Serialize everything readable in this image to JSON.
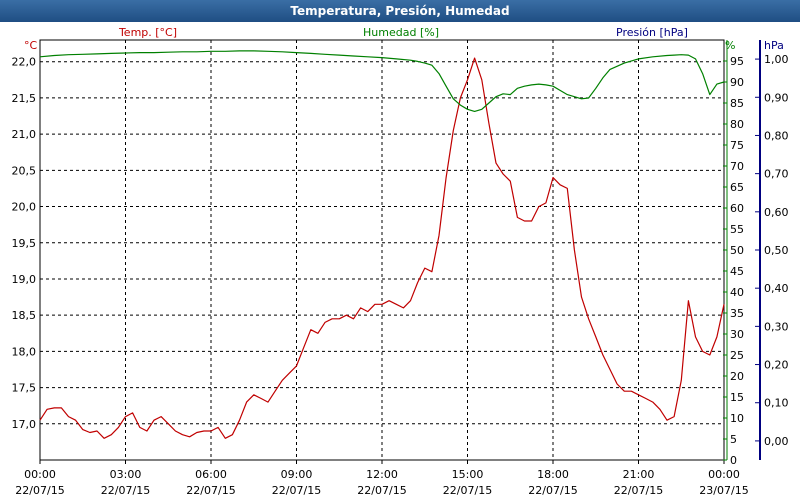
{
  "window": {
    "title": "Temperatura, Presión, Humedad"
  },
  "chart_data": {
    "type": "line",
    "title": "Temperatura, Presión, Humedad",
    "grid": true,
    "x_ticks": [
      {
        "time": "00:00",
        "date": "22/07/15"
      },
      {
        "time": "03:00",
        "date": "22/07/15"
      },
      {
        "time": "06:00",
        "date": "22/07/15"
      },
      {
        "time": "09:00",
        "date": "22/07/15"
      },
      {
        "time": "12:00",
        "date": "22/07/15"
      },
      {
        "time": "15:00",
        "date": "22/07/15"
      },
      {
        "time": "18:00",
        "date": "22/07/15"
      },
      {
        "time": "21:00",
        "date": "22/07/15"
      },
      {
        "time": "00:00",
        "date": "23/07/15"
      }
    ],
    "xlim": [
      0,
      24
    ],
    "axes": {
      "temp": {
        "label": "Temp. [°C]",
        "unit": "°C",
        "color": "#c00000",
        "ylim": [
          16.5,
          22.3
        ],
        "ticks": [
          "17,0",
          "17,5",
          "18,0",
          "18,5",
          "19,0",
          "19,5",
          "20,0",
          "20,5",
          "21,0",
          "21,5",
          "22,0"
        ],
        "tick_values": [
          17.0,
          17.5,
          18.0,
          18.5,
          19.0,
          19.5,
          20.0,
          20.5,
          21.0,
          21.5,
          22.0
        ]
      },
      "humidity": {
        "label": "Humedad [%]",
        "unit": "%",
        "color": "#008000",
        "ylim": [
          0,
          100
        ],
        "ticks": [
          "0",
          "5",
          "10",
          "15",
          "20",
          "25",
          "30",
          "35",
          "40",
          "45",
          "50",
          "55",
          "60",
          "65",
          "70",
          "75",
          "80",
          "85",
          "90",
          "95"
        ],
        "tick_values": [
          0,
          5,
          10,
          15,
          20,
          25,
          30,
          35,
          40,
          45,
          50,
          55,
          60,
          65,
          70,
          75,
          80,
          85,
          90,
          95
        ]
      },
      "pressure": {
        "label": "Presión [hPa]",
        "unit": "hPa",
        "color": "#000080",
        "ylim": [
          -0.05,
          1.05
        ],
        "ticks": [
          "0,00",
          "0,10",
          "0,20",
          "0,30",
          "0,40",
          "0,50",
          "0,60",
          "0,70",
          "0,80",
          "0,90",
          "1,00"
        ],
        "tick_values": [
          0.0,
          0.1,
          0.2,
          0.3,
          0.4,
          0.5,
          0.6,
          0.7,
          0.8,
          0.9,
          1.0
        ]
      }
    },
    "series": [
      {
        "name": "Temp. [°C]",
        "axis": "temp",
        "color": "#c00000",
        "x": [
          0,
          0.25,
          0.5,
          0.75,
          1.0,
          1.25,
          1.5,
          1.75,
          2.0,
          2.25,
          2.5,
          2.75,
          3.0,
          3.25,
          3.5,
          3.75,
          4.0,
          4.25,
          4.5,
          4.75,
          5.0,
          5.25,
          5.5,
          5.75,
          6.0,
          6.25,
          6.5,
          6.75,
          7.0,
          7.25,
          7.5,
          7.75,
          8.0,
          8.25,
          8.5,
          8.75,
          9.0,
          9.25,
          9.5,
          9.75,
          10.0,
          10.25,
          10.5,
          10.75,
          11.0,
          11.25,
          11.5,
          11.75,
          12.0,
          12.25,
          12.5,
          12.75,
          13.0,
          13.25,
          13.5,
          13.75,
          14.0,
          14.25,
          14.5,
          14.75,
          15.0,
          15.25,
          15.5,
          15.75,
          16.0,
          16.25,
          16.5,
          16.75,
          17.0,
          17.25,
          17.5,
          17.75,
          18.0,
          18.25,
          18.5,
          18.75,
          19.0,
          19.25,
          19.5,
          19.75,
          20.0,
          20.25,
          20.5,
          20.75,
          21.0,
          21.25,
          21.5,
          21.75,
          22.0,
          22.25,
          22.5,
          22.75,
          23.0,
          23.25,
          23.5,
          23.75,
          24.0
        ],
        "values": [
          17.05,
          17.2,
          17.22,
          17.22,
          17.1,
          17.05,
          16.92,
          16.88,
          16.9,
          16.8,
          16.85,
          16.95,
          17.1,
          17.15,
          16.95,
          16.9,
          17.05,
          17.1,
          17.0,
          16.9,
          16.85,
          16.82,
          16.88,
          16.9,
          16.9,
          16.95,
          16.8,
          16.85,
          17.05,
          17.3,
          17.4,
          17.35,
          17.3,
          17.45,
          17.6,
          17.7,
          17.8,
          18.05,
          18.3,
          18.25,
          18.4,
          18.45,
          18.45,
          18.5,
          18.45,
          18.6,
          18.55,
          18.65,
          18.65,
          18.7,
          18.65,
          18.6,
          18.7,
          18.95,
          19.15,
          19.1,
          19.6,
          20.4,
          21.05,
          21.5,
          21.75,
          22.05,
          21.75,
          21.15,
          20.6,
          20.45,
          20.35,
          19.85,
          19.8,
          19.8,
          20.0,
          20.05,
          20.4,
          20.3,
          20.25,
          19.4,
          18.75,
          18.45,
          18.2,
          17.95,
          17.75,
          17.55,
          17.45,
          17.45,
          17.4,
          17.35,
          17.3,
          17.2,
          17.05,
          17.1,
          17.6,
          18.7,
          18.2,
          18.0,
          17.95,
          18.2,
          18.65
        ]
      },
      {
        "name": "Humedad [%]",
        "axis": "humidity",
        "color": "#008000",
        "x": [
          0,
          0.5,
          1.0,
          1.5,
          2.0,
          2.5,
          3.0,
          3.5,
          4.0,
          4.5,
          5.0,
          5.5,
          6.0,
          6.5,
          7.0,
          7.5,
          8.0,
          8.5,
          9.0,
          9.5,
          10.0,
          10.5,
          11.0,
          11.5,
          12.0,
          12.5,
          13.0,
          13.25,
          13.5,
          13.75,
          14.0,
          14.25,
          14.5,
          14.75,
          15.0,
          15.25,
          15.5,
          15.75,
          16.0,
          16.25,
          16.5,
          16.75,
          17.0,
          17.25,
          17.5,
          17.75,
          18.0,
          18.25,
          18.5,
          18.75,
          19.0,
          19.25,
          19.5,
          19.75,
          20.0,
          20.5,
          21.0,
          21.5,
          22.0,
          22.25,
          22.5,
          22.75,
          23.0,
          23.25,
          23.5,
          23.75,
          24.0
        ],
        "values": [
          96.0,
          96.3,
          96.5,
          96.6,
          96.7,
          96.8,
          96.9,
          97.0,
          97.0,
          97.1,
          97.2,
          97.2,
          97.3,
          97.3,
          97.4,
          97.4,
          97.3,
          97.2,
          97.0,
          96.8,
          96.6,
          96.4,
          96.2,
          96.0,
          95.8,
          95.5,
          95.2,
          94.9,
          94.5,
          94.0,
          92.0,
          89.0,
          86.0,
          84.5,
          83.5,
          83.0,
          83.5,
          85.0,
          86.5,
          87.2,
          87.0,
          88.5,
          89.0,
          89.3,
          89.5,
          89.3,
          89.0,
          88.0,
          87.0,
          86.5,
          86.0,
          86.2,
          88.5,
          91.0,
          93.0,
          94.5,
          95.5,
          96.0,
          96.3,
          96.4,
          96.5,
          96.4,
          95.5,
          92.0,
          87.0,
          89.5,
          90.0
        ]
      }
    ]
  }
}
